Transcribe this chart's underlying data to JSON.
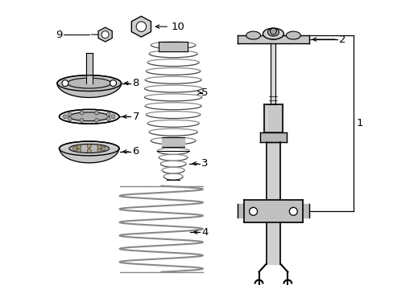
{
  "bg_color": "#ffffff",
  "line_color": "#000000",
  "gray1": "#aaaaaa",
  "gray2": "#cccccc",
  "gray3": "#888888",
  "gray4": "#dddddd"
}
